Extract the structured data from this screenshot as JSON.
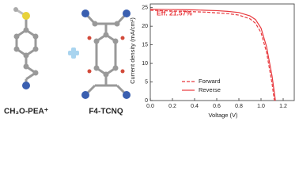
{
  "molecules": {
    "left_label": "CH₃O-PEA⁺",
    "right_label": "F4-TCNQ"
  },
  "chart_data": {
    "type": "line",
    "xlabel": "Voltage (V)",
    "ylabel": "Current density (mA/cm²)",
    "annotation": "Eff. 21.57%",
    "annotation_color": "#e8383d",
    "xlim": [
      0,
      1.3
    ],
    "ylim": [
      0,
      26
    ],
    "xticks": [
      {
        "value": 0,
        "label": "0.0"
      },
      0.2,
      0.4,
      0.6,
      0.8,
      {
        "value": 1,
        "label": "1.0"
      },
      1.2
    ],
    "yticks": [
      0,
      5,
      10,
      15,
      20,
      25
    ],
    "grid": false,
    "legend": "bottom-center",
    "series": [
      {
        "name": "Forward",
        "color": "#e8383d",
        "dashed": true,
        "x": [
          0,
          0.1,
          0.2,
          0.3,
          0.4,
          0.5,
          0.6,
          0.7,
          0.8,
          0.9,
          0.95,
          1.0,
          1.05,
          1.1,
          1.12
        ],
        "values": [
          24.3,
          24.2,
          24.1,
          24.0,
          23.9,
          23.8,
          23.6,
          23.4,
          23.0,
          22.0,
          20.8,
          18.3,
          13.0,
          4.5,
          0
        ]
      },
      {
        "name": "Reverse",
        "color": "#e8383d",
        "dashed": false,
        "x": [
          0,
          0.1,
          0.2,
          0.3,
          0.4,
          0.5,
          0.6,
          0.7,
          0.8,
          0.9,
          0.95,
          1.0,
          1.05,
          1.1,
          1.13
        ],
        "values": [
          24.6,
          24.55,
          24.5,
          24.45,
          24.4,
          24.3,
          24.2,
          24.0,
          23.7,
          22.8,
          21.8,
          19.5,
          14.5,
          6.5,
          0
        ]
      }
    ]
  }
}
